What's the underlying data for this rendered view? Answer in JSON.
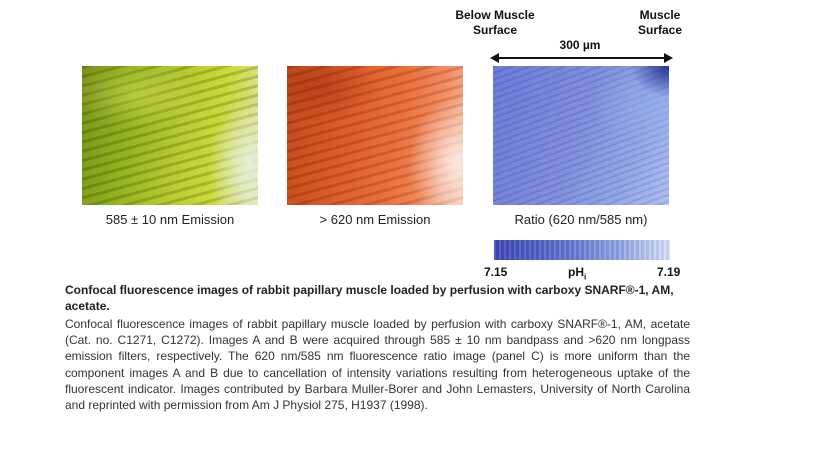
{
  "figure": {
    "header": {
      "below_label_line1": "Below Muscle",
      "below_label_line2": "Surface",
      "muscle_label_line1": "Muscle",
      "muscle_label_line2": "Surface",
      "scale_label": "300 µm"
    },
    "panels": [
      {
        "label": "585 ± 10 nm Emission",
        "color": "#a8c028"
      },
      {
        "label": "> 620 nm Emission",
        "color": "#e06430"
      },
      {
        "label": "Ratio (620 nm/585 nm)",
        "color": "#7a88d8"
      }
    ],
    "colorbar": {
      "min": "7.15",
      "max": "7.19",
      "unit_base": "pH",
      "unit_sub": "i"
    }
  },
  "caption": {
    "title": "Confocal fluorescence images of rabbit papillary muscle loaded by perfusion with carboxy SNARF®-1, AM, acetate.",
    "body": "Confocal fluorescence images of rabbit papillary muscle loaded by perfusion with carboxy SNARF®-1, AM, acetate (Cat. no. C1271, C1272). Images A and B were acquired through 585 ± 10 nm bandpass and >620 nm longpass emission filters, respectively. The 620 nm/585 nm fluorescence ratio image (panel C) is more uniform than the component images A and B due to cancellation of intensity variations resulting from heterogeneous uptake of the fluorescent indicator. Images contributed by Barbara Muller-Borer and John Lemasters, University of North Carolina and reprinted with permission from Am J Physiol 275, H1937 (1998)."
  }
}
